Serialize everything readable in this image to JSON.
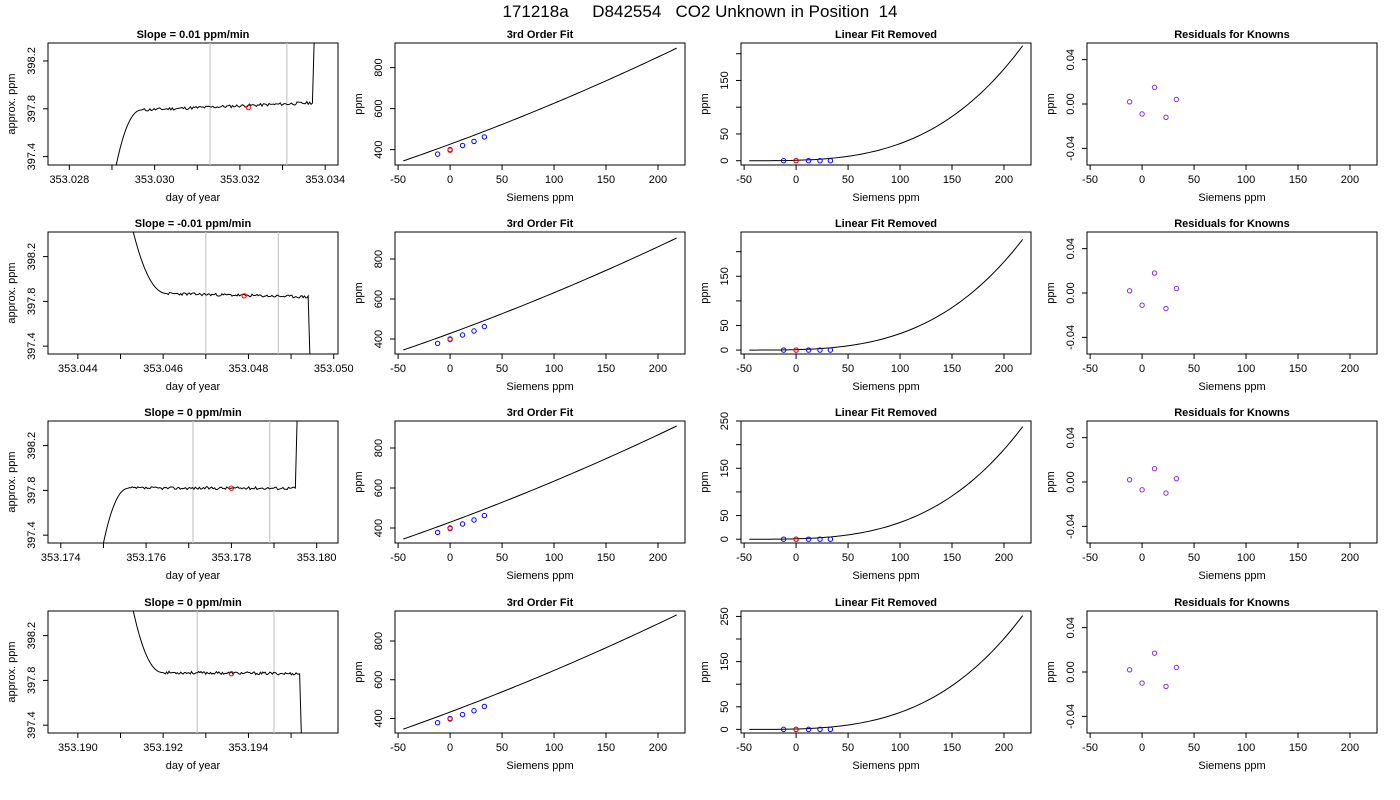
{
  "figure": {
    "title": "171218a     D842554   CO2 Unknown in Position  14"
  },
  "chart_data": [
    {
      "row": 0,
      "col": 0,
      "type": "line",
      "title": "Slope =  0.01  ppm/min",
      "xlabel": "day of year",
      "ylabel": "approx. ppm",
      "xlim": [
        353.0275,
        353.0343
      ],
      "ylim": [
        397.33,
        398.35
      ],
      "xticks": [
        "353.028",
        "353.030",
        "353.032",
        "353.034"
      ],
      "xtick_values": [
        353.028,
        353.03,
        353.032,
        353.034
      ],
      "minor_xticks": [
        353.029,
        353.031,
        353.033
      ],
      "yticks": [
        "397.4",
        "397.8",
        "398.2"
      ],
      "ytick_values": [
        397.4,
        397.8,
        398.2
      ],
      "vlines": [
        353.0313,
        353.0331
      ],
      "trace": {
        "start": 353.0291,
        "plateau_start": 353.0297,
        "end": 353.0337,
        "start_value": 397.33,
        "plateau_value": 397.79,
        "end_level": 397.85,
        "end_value": 398.35,
        "slope": 0.01,
        "direction": "rise",
        "seed": 11
      },
      "marker": {
        "x": 353.0322,
        "y": 397.81
      }
    },
    {
      "row": 0,
      "col": 1,
      "type": "line",
      "title": "3rd Order Fit",
      "xlabel": "Siemens ppm",
      "ylabel": "ppm",
      "xlim": [
        -53,
        226
      ],
      "ylim": [
        325,
        920
      ],
      "xticks": [
        "-50",
        "0",
        "50",
        "100",
        "150",
        "200"
      ],
      "xtick_values": [
        -50,
        0,
        50,
        100,
        150,
        200
      ],
      "yticks": [
        "400",
        "600",
        "800"
      ],
      "ytick_values": [
        400,
        600,
        800
      ],
      "curve": {
        "x_start": -45,
        "x_end": 218,
        "y_at_start": 345,
        "y_at_end": 895,
        "base": 400,
        "slope": 1.9,
        "cubic_coeff": 2e-05
      },
      "points": [
        {
          "x": -12,
          "y": 378
        },
        {
          "x": 0,
          "y": 400
        },
        {
          "x": 12,
          "y": 420
        },
        {
          "x": 23,
          "y": 440
        },
        {
          "x": 33,
          "y": 462
        }
      ],
      "unknown_point": {
        "x": 0,
        "y": 397
      }
    },
    {
      "row": 0,
      "col": 2,
      "type": "line",
      "title": "Linear Fit Removed",
      "xlabel": "Siemens ppm",
      "ylabel": "ppm",
      "xlim": [
        -53,
        226
      ],
      "ylim": [
        -8,
        220
      ],
      "xticks": [
        "-50",
        "0",
        "50",
        "100",
        "150",
        "200"
      ],
      "xtick_values": [
        -50,
        0,
        50,
        100,
        150,
        200
      ],
      "yticks": [
        "0",
        "50",
        "150"
      ],
      "ytick_values": [
        0,
        50,
        150
      ],
      "minor_yticks": [
        100,
        200
      ],
      "curve": {
        "x_start": -45,
        "x_end": 218,
        "y_end": 215
      },
      "points": [
        {
          "x": -12,
          "y": 0
        },
        {
          "x": 0,
          "y": 0
        },
        {
          "x": 12,
          "y": 0
        },
        {
          "x": 23,
          "y": 0
        },
        {
          "x": 33,
          "y": 0
        }
      ],
      "unknown_point": {
        "x": 0,
        "y": 0
      }
    },
    {
      "row": 0,
      "col": 3,
      "type": "scatter",
      "title": "Residuals for Knowns",
      "xlabel": "Siemens ppm",
      "ylabel": "ppm",
      "xlim": [
        -53,
        226
      ],
      "ylim": [
        -0.055,
        0.055
      ],
      "xticks": [
        "-50",
        "0",
        "50",
        "100",
        "150",
        "200"
      ],
      "xtick_values": [
        -50,
        0,
        50,
        100,
        150,
        200
      ],
      "yticks": [
        "-0.04",
        "0.00",
        "0.04"
      ],
      "ytick_values": [
        -0.04,
        0.0,
        0.04
      ],
      "points": [
        {
          "x": -12,
          "y": 0.002
        },
        {
          "x": 0,
          "y": -0.009
        },
        {
          "x": 12,
          "y": 0.015
        },
        {
          "x": 23,
          "y": -0.012
        },
        {
          "x": 33,
          "y": 0.004
        }
      ]
    },
    {
      "row": 1,
      "col": 0,
      "type": "line",
      "title": "Slope =  -0.01  ppm/min",
      "xlabel": "day of year",
      "ylabel": "approx. ppm",
      "xlim": [
        353.0433,
        353.0501
      ],
      "ylim": [
        397.33,
        398.42
      ],
      "xticks": [
        "353.044",
        "353.046",
        "353.048",
        "353.050"
      ],
      "xtick_values": [
        353.044,
        353.046,
        353.048,
        353.05
      ],
      "minor_xticks": [
        353.045,
        353.047,
        353.049
      ],
      "yticks": [
        "397.4",
        "397.8",
        "398.2"
      ],
      "ytick_values": [
        397.4,
        397.8,
        398.2
      ],
      "vlines": [
        353.047,
        353.0487
      ],
      "trace": {
        "start": 353.0453,
        "plateau_start": 353.0461,
        "end": 353.0494,
        "start_value": 398.42,
        "plateau_value": 397.87,
        "end_level": 397.84,
        "end_value": 397.33,
        "slope": -0.01,
        "direction": "decay",
        "seed": 23
      },
      "marker": {
        "x": 353.0479,
        "y": 397.85
      }
    },
    {
      "row": 1,
      "col": 1,
      "type": "line",
      "title": "3rd Order Fit",
      "xlabel": "Siemens ppm",
      "ylabel": "ppm",
      "xlim": [
        -53,
        226
      ],
      "ylim": [
        325,
        935
      ],
      "xticks": [
        "-50",
        "0",
        "50",
        "100",
        "150",
        "200"
      ],
      "xtick_values": [
        -50,
        0,
        50,
        100,
        150,
        200
      ],
      "yticks": [
        "400",
        "600",
        "800"
      ],
      "ytick_values": [
        400,
        600,
        800
      ],
      "curve": {
        "x_start": -45,
        "x_end": 218,
        "y_at_start": 345,
        "y_at_end": 905,
        "base": 400,
        "slope": 1.9,
        "cubic_coeff": 2.2e-05
      },
      "points": [
        {
          "x": -12,
          "y": 378
        },
        {
          "x": 0,
          "y": 400
        },
        {
          "x": 12,
          "y": 420
        },
        {
          "x": 23,
          "y": 440
        },
        {
          "x": 33,
          "y": 462
        }
      ],
      "unknown_point": {
        "x": 0,
        "y": 397
      }
    },
    {
      "row": 1,
      "col": 2,
      "type": "line",
      "title": "Linear Fit Removed",
      "xlabel": "Siemens ppm",
      "ylabel": "ppm",
      "xlim": [
        -53,
        226
      ],
      "ylim": [
        -8,
        240
      ],
      "xticks": [
        "-50",
        "0",
        "50",
        "100",
        "150",
        "200"
      ],
      "xtick_values": [
        -50,
        0,
        50,
        100,
        150,
        200
      ],
      "yticks": [
        "0",
        "50",
        "150"
      ],
      "ytick_values": [
        0,
        50,
        150
      ],
      "minor_yticks": [
        100,
        200
      ],
      "curve": {
        "x_start": -45,
        "x_end": 218,
        "y_end": 225
      },
      "points": [
        {
          "x": -12,
          "y": 0
        },
        {
          "x": 0,
          "y": 0
        },
        {
          "x": 12,
          "y": 0
        },
        {
          "x": 23,
          "y": 0
        },
        {
          "x": 33,
          "y": 0
        }
      ],
      "unknown_point": {
        "x": 0,
        "y": 0
      }
    },
    {
      "row": 1,
      "col": 3,
      "type": "scatter",
      "title": "Residuals for Knowns",
      "xlabel": "Siemens ppm",
      "ylabel": "ppm",
      "xlim": [
        -53,
        226
      ],
      "ylim": [
        -0.055,
        0.055
      ],
      "xticks": [
        "-50",
        "0",
        "50",
        "100",
        "150",
        "200"
      ],
      "xtick_values": [
        -50,
        0,
        50,
        100,
        150,
        200
      ],
      "yticks": [
        "-0.04",
        "0.00",
        "0.04"
      ],
      "ytick_values": [
        -0.04,
        0.0,
        0.04
      ],
      "points": [
        {
          "x": -12,
          "y": 0.002
        },
        {
          "x": 0,
          "y": -0.011
        },
        {
          "x": 12,
          "y": 0.018
        },
        {
          "x": 23,
          "y": -0.014
        },
        {
          "x": 33,
          "y": 0.004
        }
      ]
    },
    {
      "row": 2,
      "col": 0,
      "type": "line",
      "title": "Slope =  0  ppm/min",
      "xlabel": "day of year",
      "ylabel": "approx. ppm",
      "xlim": [
        353.1737,
        353.1805
      ],
      "ylim": [
        397.33,
        398.42
      ],
      "xticks": [
        "353.174",
        "353.176",
        "353.178",
        "353.180"
      ],
      "xtick_values": [
        353.174,
        353.176,
        353.178,
        353.18
      ],
      "minor_xticks": [
        353.175,
        353.177,
        353.179
      ],
      "yticks": [
        "397.4",
        "397.8",
        "398.2"
      ],
      "ytick_values": [
        397.4,
        397.8,
        398.2
      ],
      "vlines": [
        353.1771,
        353.1789
      ],
      "trace": {
        "start": 353.175,
        "plateau_start": 353.1756,
        "end": 353.1795,
        "start_value": 397.33,
        "plateau_value": 397.82,
        "end_level": 397.82,
        "end_value": 398.42,
        "slope": 0,
        "direction": "rise",
        "seed": 37
      },
      "marker": {
        "x": 353.178,
        "y": 397.82
      }
    },
    {
      "row": 2,
      "col": 1,
      "type": "line",
      "title": "3rd Order Fit",
      "xlabel": "Siemens ppm",
      "ylabel": "ppm",
      "xlim": [
        -53,
        226
      ],
      "ylim": [
        325,
        935
      ],
      "xticks": [
        "-50",
        "0",
        "50",
        "100",
        "150",
        "200"
      ],
      "xtick_values": [
        -50,
        0,
        50,
        100,
        150,
        200
      ],
      "yticks": [
        "400",
        "600",
        "800"
      ],
      "ytick_values": [
        400,
        600,
        800
      ],
      "curve": {
        "x_start": -45,
        "x_end": 218,
        "y_at_start": 345,
        "y_at_end": 910,
        "base": 400,
        "slope": 1.9,
        "cubic_coeff": 2.3e-05
      },
      "points": [
        {
          "x": -12,
          "y": 378
        },
        {
          "x": 0,
          "y": 400
        },
        {
          "x": 12,
          "y": 420
        },
        {
          "x": 23,
          "y": 440
        },
        {
          "x": 33,
          "y": 462
        }
      ],
      "unknown_point": {
        "x": 0,
        "y": 397
      }
    },
    {
      "row": 2,
      "col": 2,
      "type": "line",
      "title": "Linear Fit Removed",
      "xlabel": "Siemens ppm",
      "ylabel": "ppm",
      "xlim": [
        -53,
        226
      ],
      "ylim": [
        -8,
        250
      ],
      "xticks": [
        "-50",
        "0",
        "50",
        "100",
        "150",
        "200"
      ],
      "xtick_values": [
        -50,
        0,
        50,
        100,
        150,
        200
      ],
      "yticks": [
        "0",
        "50",
        "150",
        "250"
      ],
      "ytick_values": [
        0,
        50,
        150,
        250
      ],
      "minor_yticks": [
        100,
        200
      ],
      "curve": {
        "x_start": -45,
        "x_end": 218,
        "y_end": 238
      },
      "points": [
        {
          "x": -12,
          "y": 0
        },
        {
          "x": 0,
          "y": 0
        },
        {
          "x": 12,
          "y": 0
        },
        {
          "x": 23,
          "y": 0
        },
        {
          "x": 33,
          "y": 0
        }
      ],
      "unknown_point": {
        "x": 0,
        "y": 0
      }
    },
    {
      "row": 2,
      "col": 3,
      "type": "scatter",
      "title": "Residuals for Knowns",
      "xlabel": "Siemens ppm",
      "ylabel": "ppm",
      "xlim": [
        -53,
        226
      ],
      "ylim": [
        -0.055,
        0.055
      ],
      "xticks": [
        "-50",
        "0",
        "50",
        "100",
        "150",
        "200"
      ],
      "xtick_values": [
        -50,
        0,
        50,
        100,
        150,
        200
      ],
      "yticks": [
        "-0.04",
        "0.00",
        "0.04"
      ],
      "ytick_values": [
        -0.04,
        0.0,
        0.04
      ],
      "points": [
        {
          "x": -12,
          "y": 0.002
        },
        {
          "x": 0,
          "y": -0.007
        },
        {
          "x": 12,
          "y": 0.012
        },
        {
          "x": 23,
          "y": -0.01
        },
        {
          "x": 33,
          "y": 0.003
        }
      ]
    },
    {
      "row": 3,
      "col": 0,
      "type": "line",
      "title": "Slope =  0  ppm/min",
      "xlabel": "day of year",
      "ylabel": "approx. ppm",
      "xlim": [
        353.1893,
        353.1961
      ],
      "ylim": [
        397.33,
        398.42
      ],
      "xticks": [
        "353.190",
        "353.192",
        "353.194"
      ],
      "xtick_values": [
        353.19,
        353.192,
        353.194
      ],
      "minor_xticks": [
        353.191,
        353.193,
        353.195
      ],
      "yticks": [
        "397.4",
        "397.8",
        "398.2"
      ],
      "ytick_values": [
        397.4,
        397.8,
        398.2
      ],
      "vlines": [
        353.1928,
        353.1946
      ],
      "trace": {
        "start": 353.1913,
        "plateau_start": 353.192,
        "end": 353.1952,
        "start_value": 398.42,
        "plateau_value": 397.87,
        "end_level": 397.86,
        "end_value": 397.33,
        "slope": 0,
        "direction": "decay",
        "seed": 53
      },
      "marker": {
        "x": 353.1936,
        "y": 397.86
      }
    },
    {
      "row": 3,
      "col": 1,
      "type": "line",
      "title": "3rd Order Fit",
      "xlabel": "Siemens ppm",
      "ylabel": "ppm",
      "xlim": [
        -53,
        226
      ],
      "ylim": [
        325,
        955
      ],
      "xticks": [
        "-50",
        "0",
        "50",
        "100",
        "150",
        "200"
      ],
      "xtick_values": [
        -50,
        0,
        50,
        100,
        150,
        200
      ],
      "yticks": [
        "400",
        "600",
        "800"
      ],
      "ytick_values": [
        400,
        600,
        800
      ],
      "curve": {
        "x_start": -45,
        "x_end": 218,
        "y_at_start": 345,
        "y_at_end": 935,
        "base": 400,
        "slope": 1.9,
        "cubic_coeff": 2.4e-05
      },
      "points": [
        {
          "x": -12,
          "y": 378
        },
        {
          "x": 0,
          "y": 400
        },
        {
          "x": 12,
          "y": 420
        },
        {
          "x": 23,
          "y": 440
        },
        {
          "x": 33,
          "y": 462
        }
      ],
      "unknown_point": {
        "x": 0,
        "y": 397
      }
    },
    {
      "row": 3,
      "col": 2,
      "type": "line",
      "title": "Linear Fit Removed",
      "xlabel": "Siemens ppm",
      "ylabel": "ppm",
      "xlim": [
        -53,
        226
      ],
      "ylim": [
        -8,
        262
      ],
      "xticks": [
        "-50",
        "0",
        "50",
        "100",
        "150",
        "200"
      ],
      "xtick_values": [
        -50,
        0,
        50,
        100,
        150,
        200
      ],
      "yticks": [
        "0",
        "50",
        "150",
        "250"
      ],
      "ytick_values": [
        0,
        50,
        150,
        250
      ],
      "minor_yticks": [
        100,
        200
      ],
      "curve": {
        "x_start": -45,
        "x_end": 218,
        "y_end": 252
      },
      "points": [
        {
          "x": -12,
          "y": 0
        },
        {
          "x": 0,
          "y": 0
        },
        {
          "x": 12,
          "y": 0
        },
        {
          "x": 23,
          "y": 0
        },
        {
          "x": 33,
          "y": 0
        }
      ],
      "unknown_point": {
        "x": 0,
        "y": 0
      }
    },
    {
      "row": 3,
      "col": 3,
      "type": "scatter",
      "title": "Residuals for Knowns",
      "xlabel": "Siemens ppm",
      "ylabel": "ppm",
      "xlim": [
        -53,
        226
      ],
      "ylim": [
        -0.055,
        0.055
      ],
      "xticks": [
        "-50",
        "0",
        "50",
        "100",
        "150",
        "200"
      ],
      "xtick_values": [
        -50,
        0,
        50,
        100,
        150,
        200
      ],
      "yticks": [
        "-0.04",
        "0.00",
        "0.04"
      ],
      "ytick_values": [
        -0.04,
        0.0,
        0.04
      ],
      "points": [
        {
          "x": -12,
          "y": 0.002
        },
        {
          "x": 0,
          "y": -0.01
        },
        {
          "x": 12,
          "y": 0.017
        },
        {
          "x": 23,
          "y": -0.013
        },
        {
          "x": 33,
          "y": 0.004
        }
      ]
    }
  ],
  "colors": {
    "axes": "#000000",
    "curve": "#000000",
    "vline": "#c8c8c8",
    "known_point": "#0000ff",
    "residual_point": "#8a2be2",
    "unknown_point": "#ff0000"
  }
}
